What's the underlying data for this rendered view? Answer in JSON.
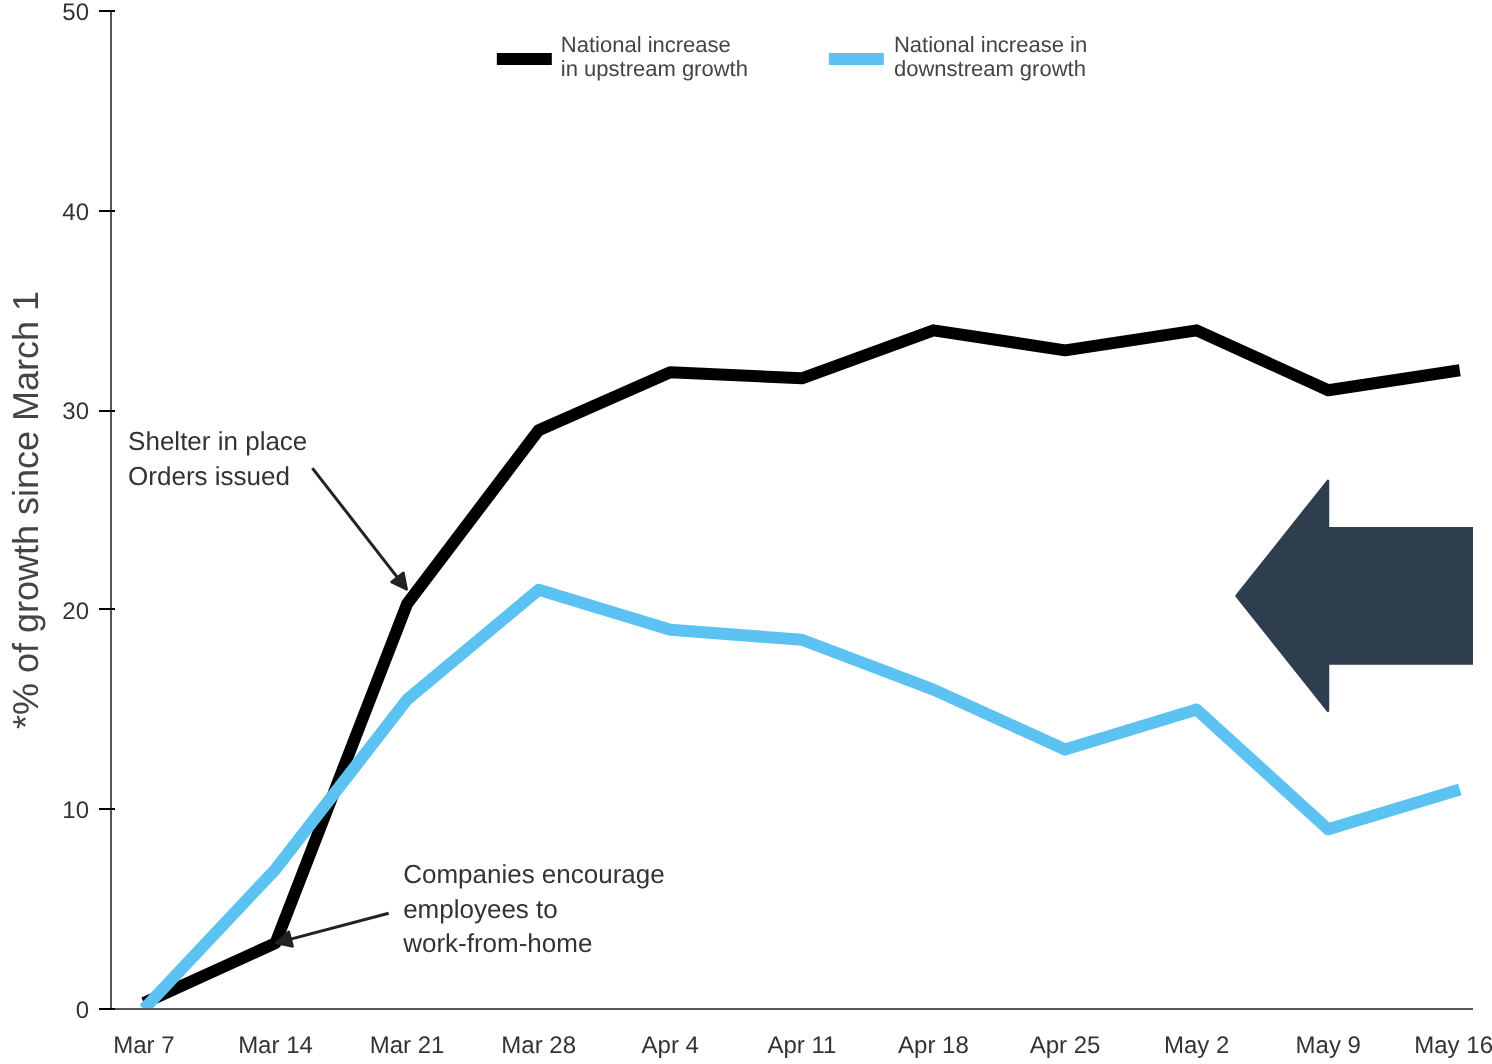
{
  "chart_data": {
    "type": "line",
    "ylabel": "*% of growth since March 1",
    "categories": [
      "Mar 7",
      "Mar 14",
      "Mar 21",
      "Mar 28",
      "Apr 4",
      "Apr 11",
      "Apr 18",
      "Apr 25",
      "May 2",
      "May 9",
      "May 16"
    ],
    "series": [
      {
        "name": "National increase\nin upstream growth",
        "color": "#000000",
        "values": [
          0.3,
          3.3,
          20.3,
          29,
          31.9,
          31.6,
          34,
          33,
          34,
          31,
          32
        ]
      },
      {
        "name": "National increase in\ndownstream growth",
        "color": "#5bc2f2",
        "values": [
          0,
          7,
          15.5,
          21,
          19,
          18.5,
          16,
          13,
          15,
          9,
          11
        ]
      }
    ],
    "ylim": [
      0,
      50
    ],
    "yticks": [
      0,
      10,
      20,
      30,
      40,
      50
    ],
    "grid": false,
    "legend": "top",
    "marker": "none",
    "line_style": "solid",
    "annotations": [
      {
        "text": "Shelter in place\nOrders issued",
        "x": "Mar 21",
        "y": 21
      },
      {
        "text": "Companies encourage\nemployees to\nwork-from-home",
        "x": "Mar 14",
        "y": 3.3
      }
    ]
  }
}
